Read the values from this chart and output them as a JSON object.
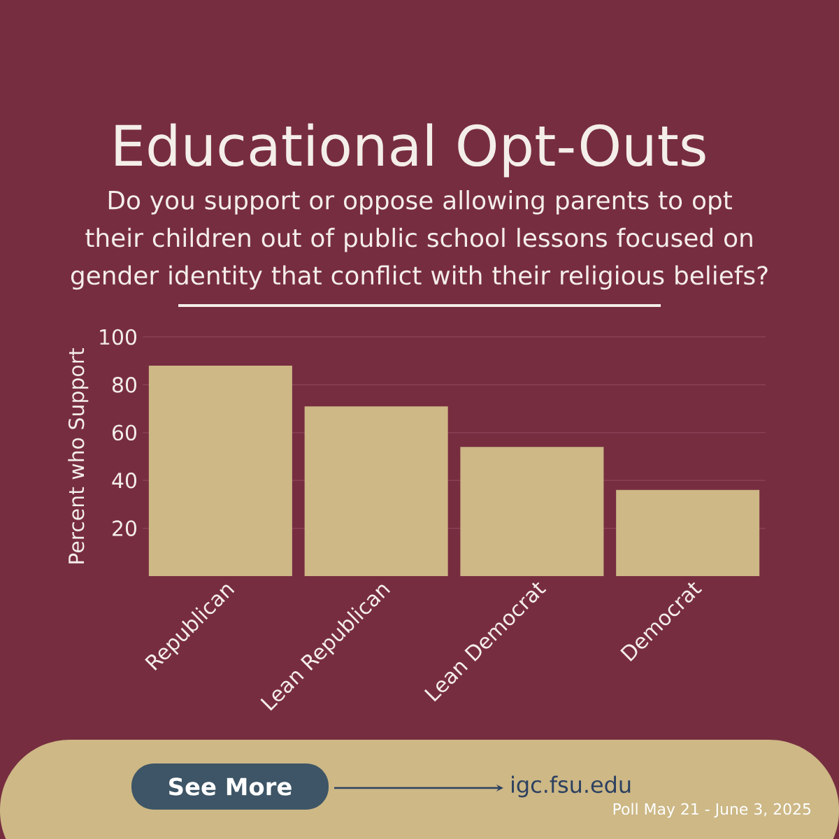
{
  "chart_data": {
    "type": "bar",
    "title": "Educational Opt-Outs",
    "subtitle": "Do you support or oppose allowing parents to opt their children out of public school lessons focused on gender identity that conflict with their religious beliefs?",
    "ylabel": "Percent who Support",
    "categories": [
      "Republican",
      "Lean Republican",
      "Lean Democrat",
      "Democrat"
    ],
    "values": [
      88,
      71,
      54,
      36
    ],
    "color": "#cdb886",
    "ylim": [
      0,
      100
    ],
    "yticks": [
      20,
      40,
      60,
      80,
      100
    ],
    "grid": "y",
    "annotations": [
      "See More",
      "igc.fsu.edu",
      "Poll May 21 - June 3, 2025"
    ]
  }
}
